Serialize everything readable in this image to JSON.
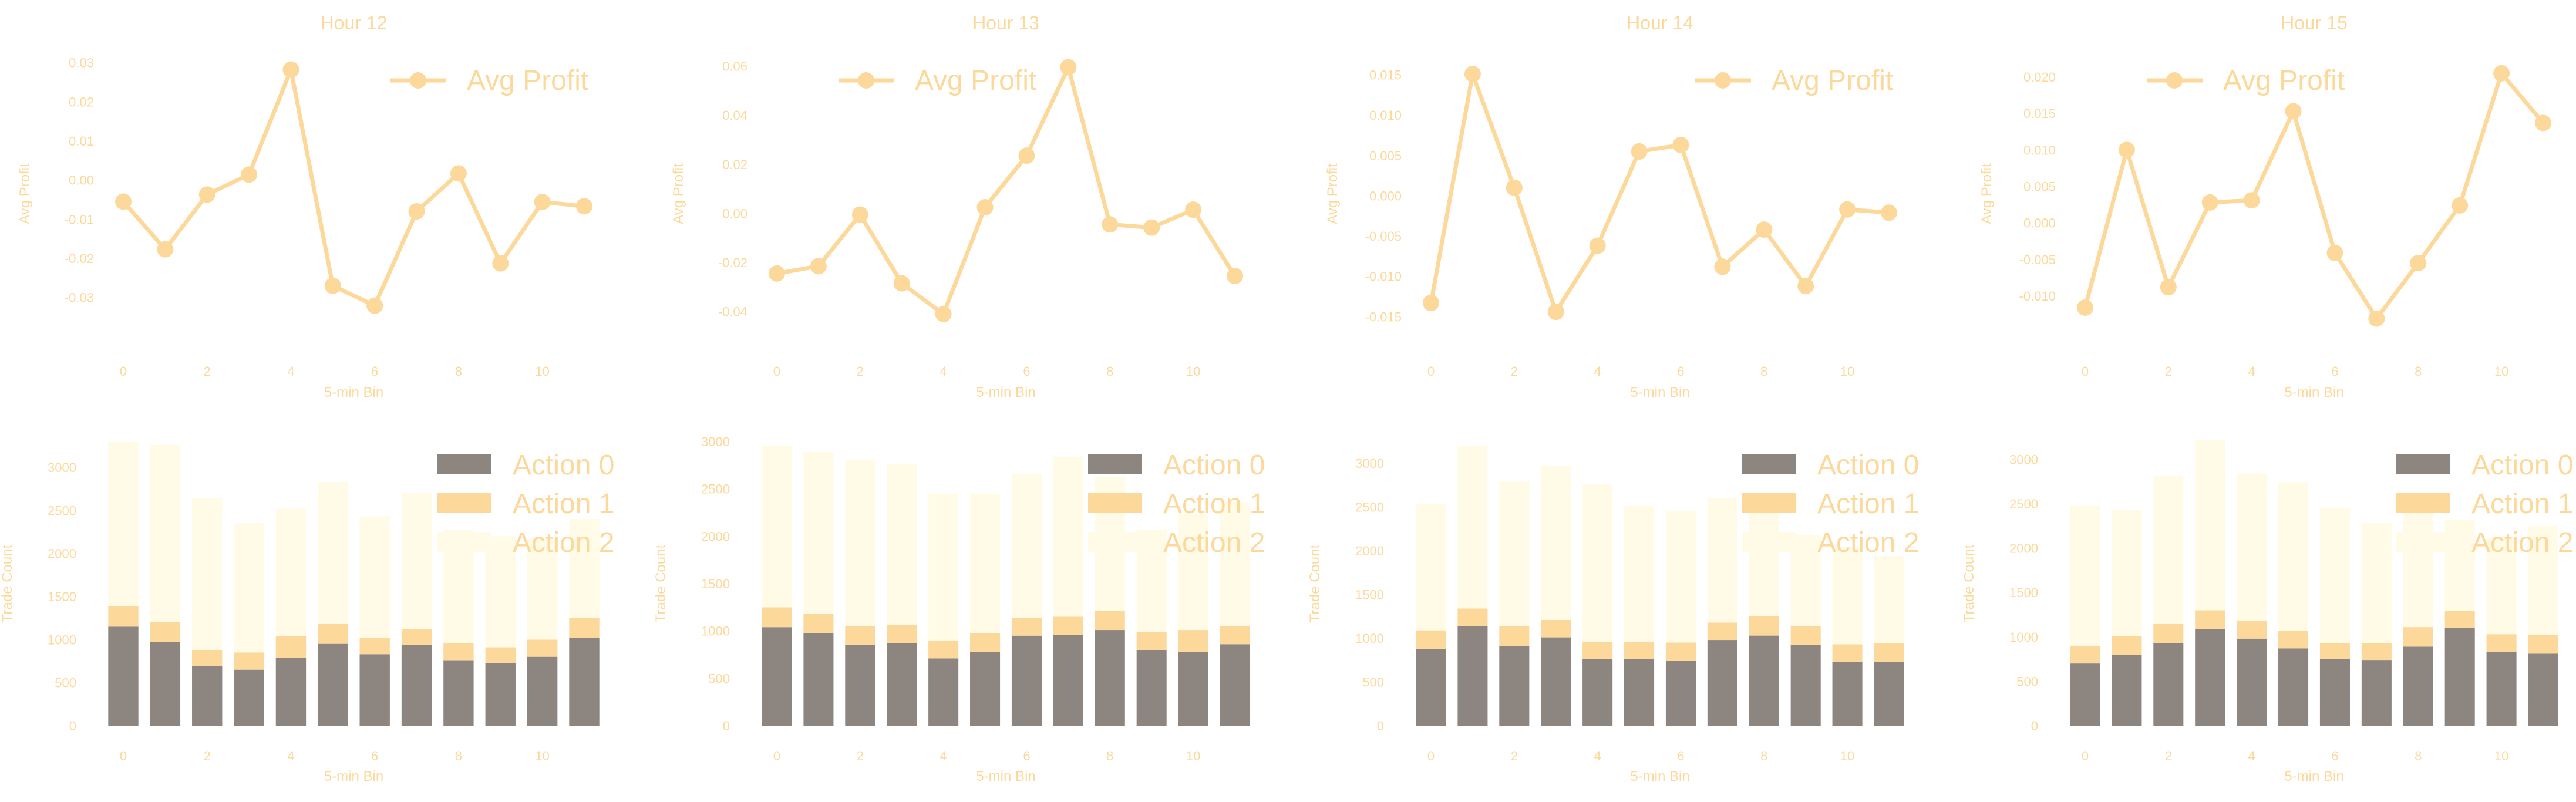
{
  "colors": {
    "line": "#fcd99b",
    "text": "#fcd99b",
    "action0": "#8c8580",
    "action1": "#fcd99b",
    "action2": "#fffbe6"
  },
  "chart_data": [
    {
      "type": "line",
      "title": "Hour 12",
      "xlabel": "5-min Bin",
      "ylabel": "Avg Profit",
      "legend": "top-right",
      "x": [
        0,
        1,
        2,
        3,
        4,
        5,
        6,
        7,
        8,
        9,
        10,
        11
      ],
      "series": [
        {
          "name": "Avg Profit",
          "values": [
            -0.0055,
            -0.0177,
            -0.0037,
            0.0014,
            0.0282,
            -0.027,
            -0.0321,
            -0.008,
            0.0017,
            -0.0213,
            -0.0056,
            -0.0067
          ]
        }
      ],
      "ylim": [
        -0.038,
        0.031
      ],
      "yticks": [
        -0.03,
        -0.02,
        -0.01,
        0.0,
        0.01,
        0.02,
        0.03
      ],
      "ytick_labels": [
        "-0.03",
        "-0.02",
        "-0.01",
        "0.00",
        "0.01",
        "0.02",
        "0.03"
      ],
      "xticks": [
        0,
        2,
        4,
        6,
        8,
        10
      ]
    },
    {
      "type": "line",
      "title": "Hour 13",
      "xlabel": "5-min Bin",
      "ylabel": "Avg Profit",
      "legend": "top-left",
      "x": [
        0,
        1,
        2,
        3,
        4,
        5,
        6,
        7,
        8,
        9,
        10,
        11
      ],
      "series": [
        {
          "name": "Avg Profit",
          "values": [
            -0.0245,
            -0.0215,
            -0.0005,
            -0.0285,
            -0.041,
            0.0025,
            0.0235,
            0.0595,
            -0.0045,
            -0.0058,
            0.0015,
            -0.0255
          ]
        }
      ],
      "ylim": [
        -0.047,
        0.063
      ],
      "yticks": [
        -0.04,
        -0.02,
        0.0,
        0.02,
        0.04,
        0.06
      ],
      "ytick_labels": [
        "-0.04",
        "-0.02",
        "0.00",
        "0.02",
        "0.04",
        "0.06"
      ],
      "xticks": [
        0,
        2,
        4,
        6,
        8,
        10
      ]
    },
    {
      "type": "line",
      "title": "Hour 14",
      "xlabel": "5-min Bin",
      "ylabel": "Avg Profit",
      "legend": "top-right",
      "x": [
        0,
        1,
        2,
        3,
        4,
        5,
        6,
        7,
        8,
        9,
        10,
        11
      ],
      "series": [
        {
          "name": "Avg Profit",
          "values": [
            -0.0133,
            0.0151,
            0.001,
            -0.0144,
            -0.0062,
            0.0055,
            0.0063,
            -0.0088,
            -0.0042,
            -0.0112,
            -0.0017,
            -0.0021
          ]
        }
      ],
      "ylim": [
        -0.0165,
        0.017
      ],
      "yticks": [
        -0.015,
        -0.01,
        -0.005,
        0.0,
        0.005,
        0.01,
        0.015
      ],
      "ytick_labels": [
        "-0.015",
        "-0.010",
        "-0.005",
        "0.000",
        "0.005",
        "0.010",
        "0.015"
      ],
      "xticks": [
        0,
        2,
        4,
        6,
        8,
        10
      ]
    },
    {
      "type": "line",
      "title": "Hour 15",
      "xlabel": "5-min Bin",
      "ylabel": "Avg Profit",
      "legend": "top-left",
      "x": [
        0,
        1,
        2,
        3,
        4,
        5,
        6,
        7,
        8,
        9,
        10,
        11
      ],
      "series": [
        {
          "name": "Avg Profit",
          "values": [
            -0.0116,
            0.01,
            -0.0088,
            0.0028,
            0.0031,
            0.0153,
            -0.0041,
            -0.0131,
            -0.0055,
            0.0024,
            0.0205,
            0.0137
          ]
        }
      ],
      "ylim": [
        -0.0145,
        0.0225
      ],
      "yticks": [
        -0.01,
        -0.005,
        0.0,
        0.005,
        0.01,
        0.015,
        0.02
      ],
      "ytick_labels": [
        "-0.010",
        "-0.005",
        "0.000",
        "0.005",
        "0.010",
        "0.015",
        "0.020"
      ],
      "xticks": [
        0,
        2,
        4,
        6,
        8,
        10
      ]
    },
    {
      "type": "bar",
      "stacked": true,
      "xlabel": "5-min Bin",
      "ylabel": "Trade Count",
      "legend": "top-right",
      "categories": [
        0,
        1,
        2,
        3,
        4,
        5,
        6,
        7,
        8,
        9,
        10,
        11
      ],
      "series": [
        {
          "name": "Action 0",
          "values": [
            1150,
            970,
            690,
            650,
            790,
            950,
            830,
            940,
            760,
            730,
            800,
            1020
          ]
        },
        {
          "name": "Action 1",
          "values": [
            240,
            230,
            190,
            200,
            250,
            230,
            190,
            180,
            200,
            180,
            200,
            230
          ]
        },
        {
          "name": "Action 2",
          "values": [
            1910,
            2060,
            1760,
            1500,
            1480,
            1650,
            1410,
            1580,
            1310,
            1290,
            1170,
            1150
          ]
        }
      ],
      "ylim": [
        0,
        3300
      ],
      "yticks": [
        0,
        500,
        1000,
        1500,
        2000,
        2500,
        3000
      ],
      "xticks": [
        0,
        2,
        4,
        6,
        8,
        10
      ]
    },
    {
      "type": "bar",
      "stacked": true,
      "xlabel": "5-min Bin",
      "ylabel": "Trade Count",
      "legend": "top-right",
      "categories": [
        0,
        1,
        2,
        3,
        4,
        5,
        6,
        7,
        8,
        9,
        10,
        11
      ],
      "series": [
        {
          "name": "Action 0",
          "values": [
            1040,
            980,
            850,
            870,
            710,
            780,
            950,
            960,
            1010,
            800,
            780,
            860
          ]
        },
        {
          "name": "Action 1",
          "values": [
            210,
            200,
            200,
            190,
            190,
            200,
            190,
            190,
            200,
            190,
            230,
            190
          ]
        },
        {
          "name": "Action 2",
          "values": [
            1700,
            1710,
            1760,
            1700,
            1550,
            1470,
            1520,
            1690,
            1420,
            1080,
            1220,
            1310
          ]
        }
      ],
      "ylim": [
        0,
        3000
      ],
      "yticks": [
        0,
        500,
        1000,
        1500,
        2000,
        2500,
        3000
      ],
      "xticks": [
        0,
        2,
        4,
        6,
        8,
        10
      ]
    },
    {
      "type": "bar",
      "stacked": true,
      "xlabel": "5-min Bin",
      "ylabel": "Trade Count",
      "legend": "top-right",
      "categories": [
        0,
        1,
        2,
        3,
        4,
        5,
        6,
        7,
        8,
        9,
        10,
        11
      ],
      "series": [
        {
          "name": "Action 0",
          "values": [
            880,
            1140,
            910,
            1010,
            760,
            760,
            740,
            980,
            1030,
            920,
            730,
            730
          ]
        },
        {
          "name": "Action 1",
          "values": [
            210,
            200,
            230,
            200,
            200,
            200,
            210,
            200,
            220,
            220,
            200,
            210
          ]
        },
        {
          "name": "Action 2",
          "values": [
            1450,
            1860,
            1650,
            1760,
            1800,
            1550,
            1500,
            1420,
            1330,
            1040,
            1110,
            1000
          ]
        }
      ],
      "ylim": [
        0,
        3250
      ],
      "yticks": [
        0,
        500,
        1000,
        1500,
        2000,
        2500,
        3000
      ],
      "xticks": [
        0,
        2,
        4,
        6,
        8,
        10
      ]
    },
    {
      "type": "bar",
      "stacked": true,
      "xlabel": "5-min Bin",
      "ylabel": "Trade Count",
      "legend": "top-right",
      "categories": [
        0,
        1,
        2,
        3,
        4,
        5,
        6,
        7,
        8,
        9,
        10,
        11
      ],
      "series": [
        {
          "name": "Action 0",
          "values": [
            700,
            800,
            930,
            1090,
            980,
            870,
            750,
            740,
            890,
            1100,
            830,
            810
          ]
        },
        {
          "name": "Action 1",
          "values": [
            200,
            210,
            220,
            210,
            200,
            200,
            180,
            190,
            220,
            190,
            200,
            210
          ]
        },
        {
          "name": "Action 2",
          "values": [
            1580,
            1420,
            1660,
            1920,
            1660,
            1670,
            1520,
            1350,
            1430,
            1030,
            1100,
            1230
          ]
        }
      ],
      "ylim": [
        0,
        3200
      ],
      "yticks": [
        0,
        500,
        1000,
        1500,
        2000,
        2500,
        3000
      ],
      "xticks": [
        0,
        2,
        4,
        6,
        8,
        10
      ]
    }
  ]
}
